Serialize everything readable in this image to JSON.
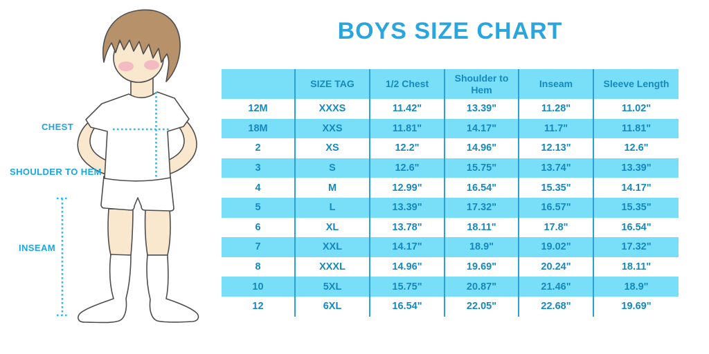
{
  "title": "BOYS SIZE CHART",
  "illustration": {
    "figure": "boy-cartoon-standing",
    "labels": {
      "chest": "CHEST",
      "shoulder_to_hem": "SHOULDER TO HEM",
      "inseam": "INSEAM"
    }
  },
  "chart_data": {
    "type": "table",
    "title": "BOYS SIZE CHART",
    "columns": [
      "",
      "SIZE TAG",
      "1/2 Chest",
      "Shoulder to Hem",
      "Inseam",
      "Sleeve Length"
    ],
    "rows": [
      [
        "12M",
        "XXXS",
        "11.42\"",
        "13.39\"",
        "11.28\"",
        "11.02\""
      ],
      [
        "18M",
        "XXS",
        "11.81\"",
        "14.17\"",
        "11.7\"",
        "11.81\""
      ],
      [
        "2",
        "XS",
        "12.2\"",
        "14.96\"",
        "12.13\"",
        "12.6\""
      ],
      [
        "3",
        "S",
        "12.6\"",
        "15.75\"",
        "13.74\"",
        "13.39\""
      ],
      [
        "4",
        "M",
        "12.99\"",
        "16.54\"",
        "15.35\"",
        "14.17\""
      ],
      [
        "5",
        "L",
        "13.39\"",
        "17.32\"",
        "16.57\"",
        "15.35\""
      ],
      [
        "6",
        "XL",
        "13.78\"",
        "18.11\"",
        "17.8\"",
        "16.54\""
      ],
      [
        "7",
        "XXL",
        "14.17\"",
        "18.9\"",
        "19.02\"",
        "17.32\""
      ],
      [
        "8",
        "XXXL",
        "14.96\"",
        "19.69\"",
        "20.24\"",
        "18.11\""
      ],
      [
        "10",
        "5XL",
        "15.75\"",
        "20.87\"",
        "21.46\"",
        "18.9\""
      ],
      [
        "12",
        "6XL",
        "16.54\"",
        "22.05\"",
        "22.68\"",
        "19.69\""
      ]
    ],
    "layout": {
      "striping": "alternate rows cyan starting with header; data rows 18M,3,5,7,10 highlighted",
      "grid": "vertical column dividers only, no outer border"
    }
  },
  "colors": {
    "title_blue": "#2AA5DE",
    "cell_text_blue": "#1588BE",
    "row_cyan": "#79DFF9",
    "divider_blue": "#2AA0D3",
    "dotted_line_cyan": "#2ABBE9",
    "label_blue": "#1BA6DF",
    "skin": "#FAE8CE",
    "hair_brown": "#B6916A",
    "blush_pink": "#F0A8BC",
    "outline_gray": "#4D4D4D"
  }
}
